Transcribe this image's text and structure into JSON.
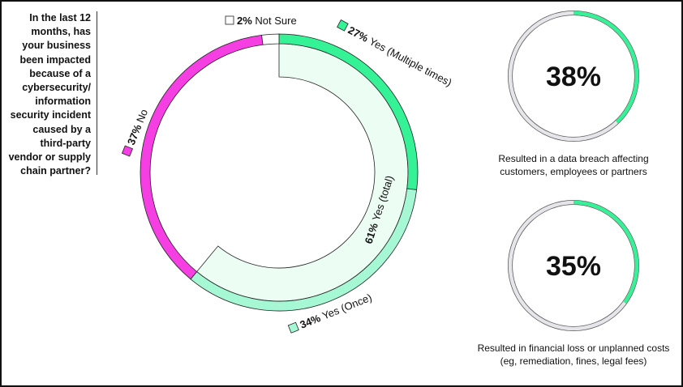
{
  "question": "In the last 12 months, has your business been impacted because of a cybersecurity/ information security incident caused by a third-party vendor or supply chain partner?",
  "chart_data": [
    {
      "type": "pie",
      "variant": "donut",
      "slices": [
        {
          "label": "Yes (Multiple times)",
          "pct_label": "27%",
          "value": 27,
          "color": "#35f296"
        },
        {
          "label": "Yes (Once)",
          "pct_label": "34%",
          "value": 34,
          "color": "#a6f7d4"
        },
        {
          "label": "No",
          "pct_label": "37%",
          "value": 37,
          "color": "#f53fe3"
        },
        {
          "label": "Not Sure",
          "pct_label": "2%",
          "value": 2,
          "color": "#ffffff"
        }
      ],
      "inner_band": {
        "label": "Yes (total)",
        "pct_label": "61%",
        "value": 61,
        "color": "#ecfdf4"
      }
    },
    {
      "type": "pie",
      "variant": "progress-ring",
      "value": 38,
      "value_label": "38%",
      "caption": "Resulted in a data breach affecting customers, employees or partners",
      "color": "#35f296",
      "track_color": "#e6e6ea"
    },
    {
      "type": "pie",
      "variant": "progress-ring",
      "value": 35,
      "value_label": "35%",
      "caption": "Resulted in financial loss or unplanned costs (eg, remediation, fines, legal fees)",
      "color": "#35f296",
      "track_color": "#e6e6ea"
    }
  ]
}
